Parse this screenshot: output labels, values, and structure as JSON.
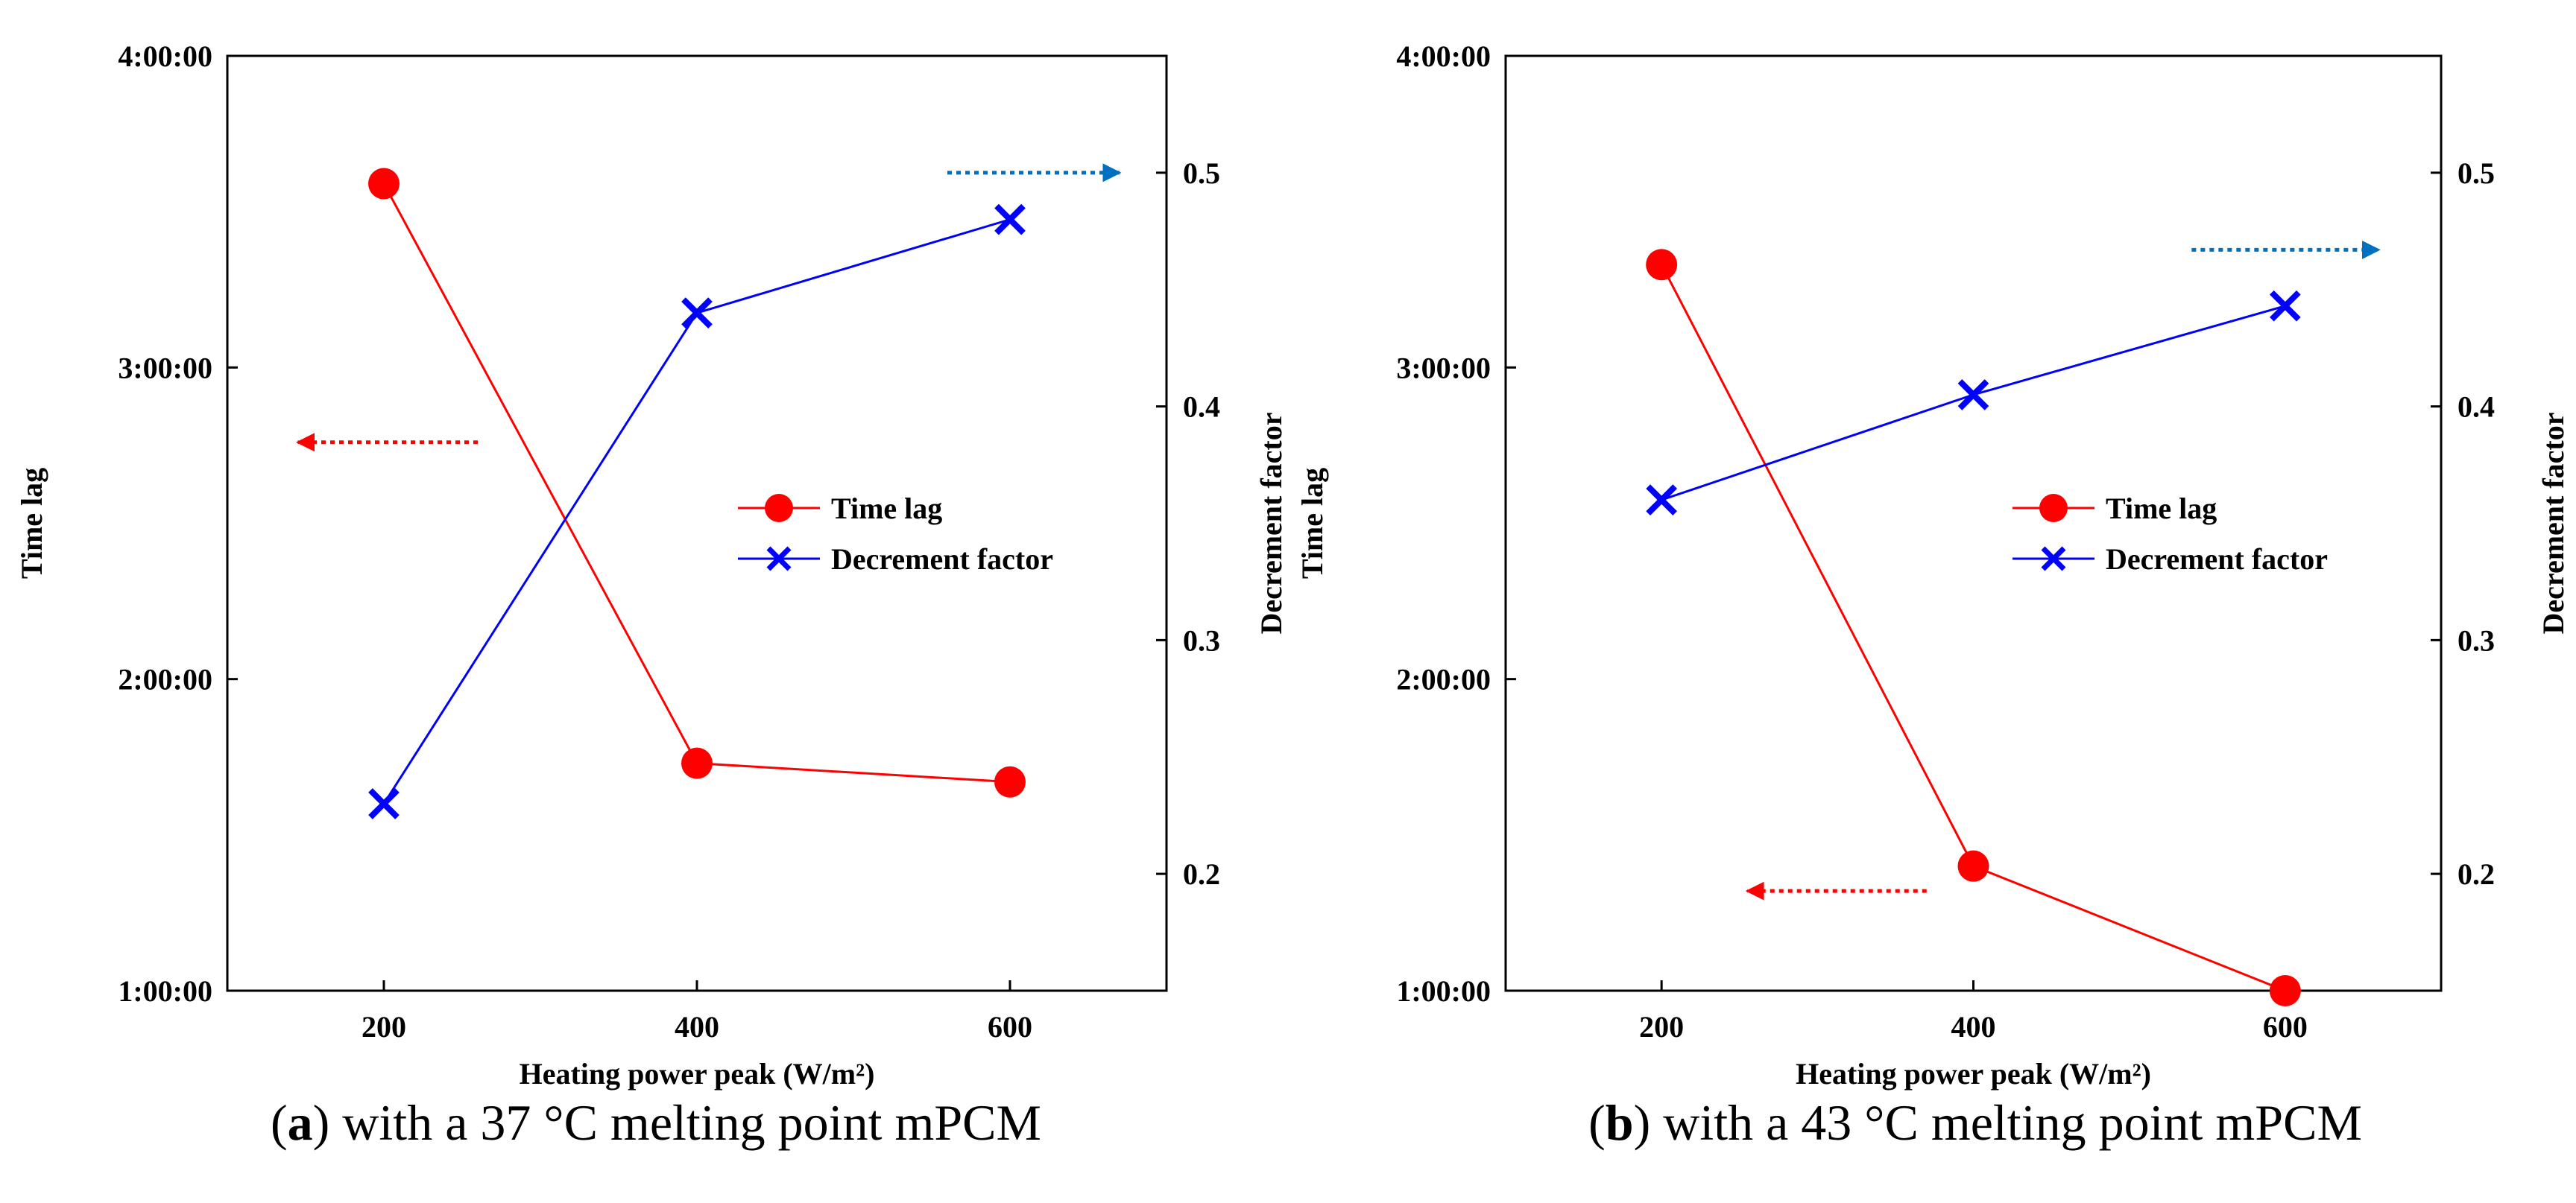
{
  "chart_data": [
    {
      "type": "line",
      "panel_letter": "a",
      "caption_text": " with a 37 °C melting point mPCM",
      "xlabel": "Heating power peak (W/m²)",
      "ylabel_left": "Time lag",
      "ylabel_right": "Decrement factor",
      "x": [
        200,
        400,
        600
      ],
      "xlim": [
        100,
        700
      ],
      "xticks": [
        "200",
        "400",
        "600"
      ],
      "ylim_left_hours": [
        1,
        4
      ],
      "yticks_left": [
        "1:00:00",
        "2:00:00",
        "3:00:00",
        "4:00:00"
      ],
      "ylim_right": [
        0.15,
        0.55
      ],
      "yticks_right": [
        "0.2",
        "0.3",
        "0.4",
        "0.5"
      ],
      "series": [
        {
          "name": "Time lag",
          "axis": "left",
          "marker": "circle",
          "color": "#ff0000",
          "values_hours": [
            3.59,
            1.73,
            1.67
          ]
        },
        {
          "name": "Decrement factor",
          "axis": "right",
          "marker": "x",
          "color": "#0000ff",
          "values": [
            0.23,
            0.44,
            0.48
          ]
        }
      ],
      "legend": [
        "Time lag",
        "Decrement factor"
      ],
      "arrows": [
        {
          "direction": "left",
          "color": "#ff0000",
          "from_x": 260,
          "to_x": 145,
          "y_hours": 2.76
        },
        {
          "direction": "right",
          "color": "#0070c0",
          "from_x": 560,
          "to_x": 670,
          "y_right": 0.5
        }
      ]
    },
    {
      "type": "line",
      "panel_letter": "b",
      "caption_text": " with a 43 °C melting point mPCM",
      "xlabel": "Heating power peak (W/m²)",
      "ylabel_left": "Time lag",
      "ylabel_right": "Decrement factor",
      "x": [
        200,
        400,
        600
      ],
      "xlim": [
        100,
        700
      ],
      "xticks": [
        "200",
        "400",
        "600"
      ],
      "ylim_left_hours": [
        1,
        4
      ],
      "yticks_left": [
        "1:00:00",
        "2:00:00",
        "3:00:00",
        "4:00:00"
      ],
      "ylim_right": [
        0.15,
        0.55
      ],
      "yticks_right": [
        "0.2",
        "0.3",
        "0.4",
        "0.5"
      ],
      "series": [
        {
          "name": "Time lag",
          "axis": "left",
          "marker": "circle",
          "color": "#ff0000",
          "values_hours": [
            3.33,
            1.4,
            1.0
          ]
        },
        {
          "name": "Decrement factor",
          "axis": "right",
          "marker": "x",
          "color": "#0000ff",
          "values": [
            0.36,
            0.405,
            0.443
          ]
        }
      ],
      "legend": [
        "Time lag",
        "Decrement factor"
      ],
      "arrows": [
        {
          "direction": "left",
          "color": "#ff0000",
          "from_x": 370,
          "to_x": 255,
          "y_hours": 1.32
        },
        {
          "direction": "right",
          "color": "#0070c0",
          "from_x": 540,
          "to_x": 660,
          "y_right": 0.467
        }
      ]
    }
  ]
}
